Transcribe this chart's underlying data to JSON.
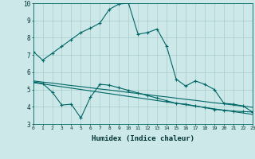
{
  "xlabel": "Humidex (Indice chaleur)",
  "xlim": [
    0,
    23
  ],
  "ylim": [
    3,
    10
  ],
  "xticks": [
    0,
    1,
    2,
    3,
    4,
    5,
    6,
    7,
    8,
    9,
    10,
    11,
    12,
    13,
    14,
    15,
    16,
    17,
    18,
    19,
    20,
    21,
    22,
    23
  ],
  "yticks": [
    3,
    4,
    5,
    6,
    7,
    8,
    9,
    10
  ],
  "bg_color": "#cce8e8",
  "grid_color": "#aacccc",
  "line_color": "#006666",
  "line1_x": [
    0,
    1,
    2,
    3,
    4,
    5,
    6,
    7,
    8,
    9,
    10,
    11,
    12,
    13,
    14,
    15,
    16,
    17,
    18,
    19,
    20,
    21,
    22,
    23
  ],
  "line1_y": [
    7.2,
    6.7,
    7.1,
    7.5,
    7.9,
    8.3,
    8.55,
    8.85,
    9.65,
    9.95,
    10.0,
    8.2,
    8.3,
    8.5,
    7.5,
    5.6,
    5.2,
    5.5,
    5.3,
    5.0,
    4.2,
    4.15,
    4.05,
    3.7
  ],
  "line2_x": [
    0,
    1,
    2,
    3,
    4,
    5,
    6,
    7,
    8,
    9,
    10,
    11,
    12,
    13,
    14,
    15,
    16,
    17,
    18,
    19,
    20,
    21,
    22,
    23
  ],
  "line2_y": [
    5.45,
    5.35,
    4.85,
    4.1,
    4.15,
    3.35,
    4.55,
    5.3,
    5.25,
    5.1,
    4.95,
    4.8,
    4.65,
    4.5,
    4.35,
    4.2,
    4.15,
    4.05,
    3.95,
    3.85,
    3.8,
    3.75,
    3.72,
    3.7
  ],
  "line3_x": [
    0,
    1,
    2,
    3,
    4,
    5,
    6,
    7,
    8,
    9,
    10,
    11,
    12,
    13,
    14,
    15,
    16,
    17,
    18,
    19,
    20,
    21,
    22,
    23
  ],
  "line3_y": [
    5.5,
    5.43,
    5.37,
    5.3,
    5.23,
    5.17,
    5.1,
    5.03,
    4.97,
    4.9,
    4.83,
    4.77,
    4.7,
    4.63,
    4.57,
    4.5,
    4.43,
    4.37,
    4.3,
    4.23,
    4.17,
    4.1,
    4.03,
    3.97
  ],
  "line4_x": [
    0,
    1,
    2,
    3,
    4,
    5,
    6,
    7,
    8,
    9,
    10,
    11,
    12,
    13,
    14,
    15,
    16,
    17,
    18,
    19,
    20,
    21,
    22,
    23
  ],
  "line4_y": [
    5.4,
    5.32,
    5.24,
    5.16,
    5.08,
    5.0,
    4.92,
    4.84,
    4.76,
    4.68,
    4.6,
    4.52,
    4.44,
    4.36,
    4.28,
    4.2,
    4.12,
    4.04,
    3.96,
    3.88,
    3.8,
    3.72,
    3.64,
    3.56
  ]
}
